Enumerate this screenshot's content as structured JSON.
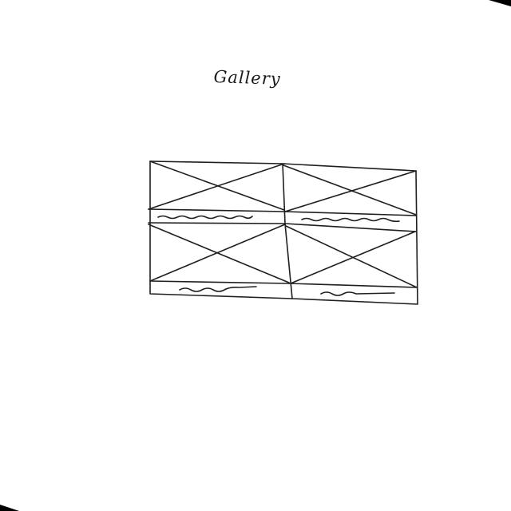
{
  "header": {
    "title": "Gallery"
  },
  "gallery": {
    "columns": 2,
    "rows": 2,
    "items": [
      {
        "kind": "image-placeholder",
        "caption": "squiggle"
      },
      {
        "kind": "image-placeholder",
        "caption": "squiggle"
      },
      {
        "kind": "image-placeholder",
        "caption": "squiggle"
      },
      {
        "kind": "image-placeholder",
        "caption": "squiggle"
      }
    ]
  },
  "colors": {
    "ink": "#1f1f1f",
    "paper": "#ffffff",
    "background": "#000000"
  }
}
